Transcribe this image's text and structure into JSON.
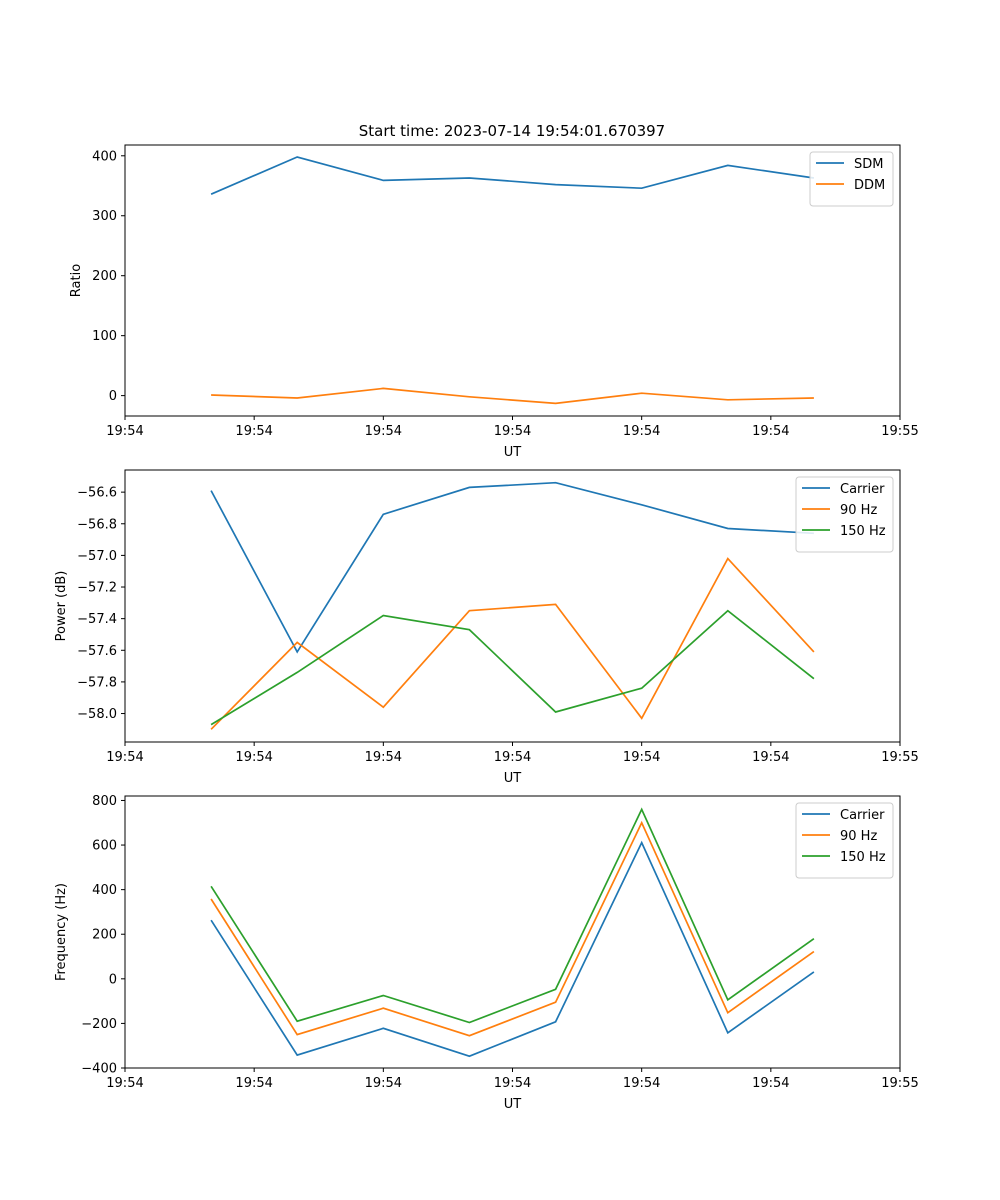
{
  "figure_title": "Start time: 2023-07-14 19:54:01.670397",
  "colors": {
    "blue": "#1f77b4",
    "orange": "#ff7f0e",
    "green": "#2ca02c"
  },
  "chart_data": [
    {
      "type": "line",
      "title": "Start time: 2023-07-14 19:54:01.670397",
      "xlabel": "UT",
      "ylabel": "Ratio",
      "x": [
        1,
        2,
        3,
        4,
        5,
        6,
        7,
        8
      ],
      "xlim": [
        0,
        9
      ],
      "xticks": [
        0,
        1.5,
        3,
        4.5,
        6,
        7.5,
        9
      ],
      "xtick_labels": [
        "19:54",
        "19:54",
        "19:54",
        "19:54",
        "19:54",
        "19:54",
        "19:55"
      ],
      "ylim": [
        -34,
        418
      ],
      "yticks": [
        0,
        100,
        200,
        300,
        400
      ],
      "ytick_labels": [
        "0",
        "100",
        "200",
        "300",
        "400"
      ],
      "legend_position": "top-right",
      "series": [
        {
          "name": "SDM",
          "color": "#1f77b4",
          "values": [
            336,
            398,
            359,
            363,
            352,
            346,
            384,
            363
          ]
        },
        {
          "name": "DDM",
          "color": "#ff7f0e",
          "values": [
            1,
            -4,
            12,
            -2,
            -13,
            4,
            -7,
            -4
          ]
        }
      ]
    },
    {
      "type": "line",
      "xlabel": "UT",
      "ylabel": "Power (dB)",
      "x": [
        1,
        2,
        3,
        4,
        5,
        6,
        7,
        8
      ],
      "xlim": [
        0,
        9
      ],
      "xticks": [
        0,
        1.5,
        3,
        4.5,
        6,
        7.5,
        9
      ],
      "xtick_labels": [
        "19:54",
        "19:54",
        "19:54",
        "19:54",
        "19:54",
        "19:54",
        "19:55"
      ],
      "ylim": [
        -58.18,
        -56.46
      ],
      "yticks": [
        -58.0,
        -57.8,
        -57.6,
        -57.4,
        -57.2,
        -57.0,
        -56.8,
        -56.6
      ],
      "ytick_labels": [
        "−58.0",
        "−57.8",
        "−57.6",
        "−57.4",
        "−57.2",
        "−57.0",
        "−56.8",
        "−56.6"
      ],
      "legend_position": "top-right",
      "series": [
        {
          "name": "Carrier",
          "color": "#1f77b4",
          "values": [
            -56.59,
            -57.61,
            -56.74,
            -56.57,
            -56.54,
            -56.68,
            -56.83,
            -56.86
          ]
        },
        {
          "name": "90 Hz",
          "color": "#ff7f0e",
          "values": [
            -58.1,
            -57.55,
            -57.96,
            -57.35,
            -57.31,
            -58.03,
            -57.02,
            -57.61
          ]
        },
        {
          "name": "150 Hz",
          "color": "#2ca02c",
          "values": [
            -58.07,
            -57.74,
            -57.38,
            -57.47,
            -57.99,
            -57.84,
            -57.35,
            -57.78
          ]
        }
      ]
    },
    {
      "type": "line",
      "xlabel": "UT",
      "ylabel": "Frequency (Hz)",
      "x": [
        1,
        2,
        3,
        4,
        5,
        6,
        7,
        8
      ],
      "xlim": [
        0,
        9
      ],
      "xticks": [
        0,
        1.5,
        3,
        4.5,
        6,
        7.5,
        9
      ],
      "xtick_labels": [
        "19:54",
        "19:54",
        "19:54",
        "19:54",
        "19:54",
        "19:54",
        "19:55"
      ],
      "ylim": [
        -400,
        820
      ],
      "yticks": [
        -400,
        -200,
        0,
        200,
        400,
        600,
        800
      ],
      "ytick_labels": [
        "−400",
        "−200",
        "0",
        "200",
        "400",
        "600",
        "800"
      ],
      "legend_position": "top-right",
      "series": [
        {
          "name": "Carrier",
          "color": "#1f77b4",
          "values": [
            263,
            -342,
            -222,
            -347,
            -193,
            611,
            -242,
            31
          ]
        },
        {
          "name": "90 Hz",
          "color": "#ff7f0e",
          "values": [
            358,
            -250,
            -132,
            -255,
            -105,
            700,
            -152,
            122
          ]
        },
        {
          "name": "150 Hz",
          "color": "#2ca02c",
          "values": [
            415,
            -190,
            -75,
            -196,
            -47,
            760,
            -94,
            180
          ]
        }
      ]
    }
  ]
}
